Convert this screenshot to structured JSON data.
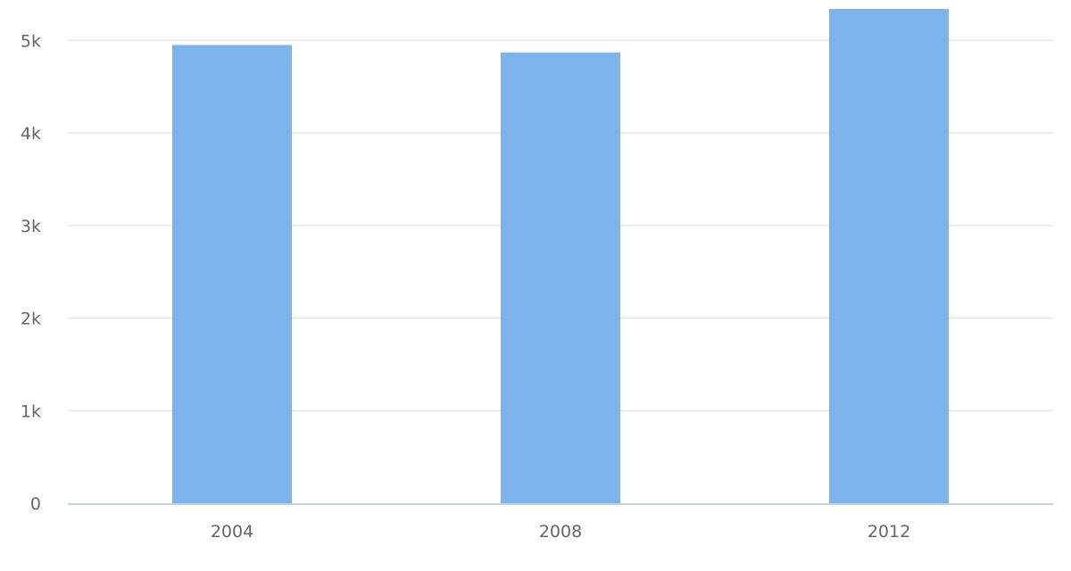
{
  "chart_data": {
    "type": "bar",
    "categories": [
      "2004",
      "2008",
      "2012"
    ],
    "values": [
      4950,
      4870,
      5340
    ],
    "y_ticks": [
      {
        "value": 0,
        "label": "0"
      },
      {
        "value": 1000,
        "label": "1k"
      },
      {
        "value": 2000,
        "label": "2k"
      },
      {
        "value": 3000,
        "label": "3k"
      },
      {
        "value": 4000,
        "label": "4k"
      },
      {
        "value": 5000,
        "label": "5k"
      }
    ],
    "ylim": [
      0,
      5340
    ],
    "title": "",
    "xlabel": "",
    "ylabel": "",
    "grid": true,
    "legend": "none",
    "colors": {
      "bar": "#7cb5ec",
      "grid": "#e0e6ea",
      "axis": "#c0d0de",
      "label": "#666666"
    }
  }
}
